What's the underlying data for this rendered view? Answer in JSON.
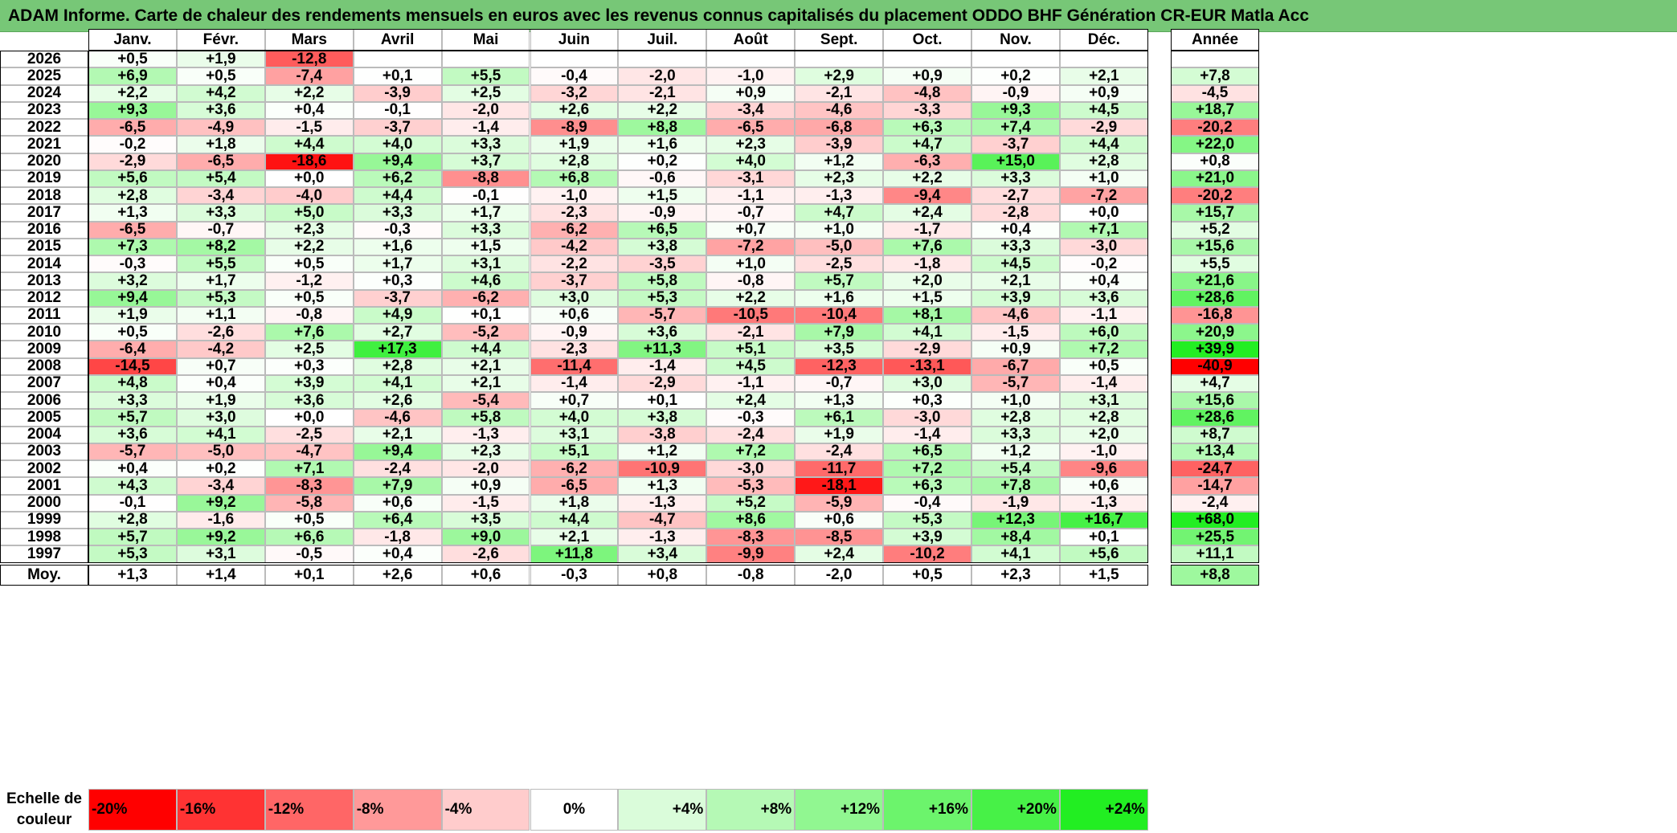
{
  "title": "ADAM Informe. Carte de chaleur des rendements mensuels en euros avec les revenus connus capitalisés du placement ODDO BHF Génération CR-EUR Matla Acc",
  "chart_data": {
    "type": "heatmap",
    "months": [
      "Janv.",
      "Févr.",
      "Mars",
      "Avril",
      "Mai",
      "Juin",
      "Juil.",
      "Août",
      "Sept.",
      "Oct.",
      "Nov.",
      "Déc."
    ],
    "year_header": "Année",
    "rows": [
      {
        "year": "2026",
        "values": [
          "+0,5",
          "+1,9",
          "-12,8",
          "",
          "",
          "",
          "",
          "",
          "",
          "",
          "",
          ""
        ],
        "annual": ""
      },
      {
        "year": "2025",
        "values": [
          "+6,9",
          "+0,5",
          "-7,4",
          "+0,1",
          "+5,5",
          "-0,4",
          "-2,0",
          "-1,0",
          "+2,9",
          "+0,9",
          "+0,2",
          "+2,1"
        ],
        "annual": "+7,8"
      },
      {
        "year": "2024",
        "values": [
          "+2,2",
          "+4,2",
          "+2,2",
          "-3,9",
          "+2,5",
          "-3,2",
          "-2,1",
          "+0,9",
          "-2,1",
          "-4,8",
          "-0,9",
          "+0,9"
        ],
        "annual": "-4,5"
      },
      {
        "year": "2023",
        "values": [
          "+9,3",
          "+3,6",
          "+0,4",
          "-0,1",
          "-2,0",
          "+2,6",
          "+2,2",
          "-3,4",
          "-4,6",
          "-3,3",
          "+9,3",
          "+4,5"
        ],
        "annual": "+18,7"
      },
      {
        "year": "2022",
        "values": [
          "-6,5",
          "-4,9",
          "-1,5",
          "-3,7",
          "-1,4",
          "-8,9",
          "+8,8",
          "-6,5",
          "-6,8",
          "+6,3",
          "+7,4",
          "-2,9"
        ],
        "annual": "-20,2"
      },
      {
        "year": "2021",
        "values": [
          "-0,2",
          "+1,8",
          "+4,4",
          "+4,0",
          "+3,3",
          "+1,9",
          "+1,6",
          "+2,3",
          "-3,9",
          "+4,7",
          "-3,7",
          "+4,4"
        ],
        "annual": "+22,0"
      },
      {
        "year": "2020",
        "values": [
          "-2,9",
          "-6,5",
          "-18,6",
          "+9,4",
          "+3,7",
          "+2,8",
          "+0,2",
          "+4,0",
          "+1,2",
          "-6,3",
          "+15,0",
          "+2,8"
        ],
        "annual": "+0,8"
      },
      {
        "year": "2019",
        "values": [
          "+5,6",
          "+5,4",
          "+0,0",
          "+6,2",
          "-8,8",
          "+6,8",
          "-0,6",
          "-3,1",
          "+2,3",
          "+2,2",
          "+3,3",
          "+1,0"
        ],
        "annual": "+21,0"
      },
      {
        "year": "2018",
        "values": [
          "+2,8",
          "-3,4",
          "-4,0",
          "+4,4",
          "-0,1",
          "-1,0",
          "+1,5",
          "-1,1",
          "-1,3",
          "-9,4",
          "-2,7",
          "-7,2"
        ],
        "annual": "-20,2"
      },
      {
        "year": "2017",
        "values": [
          "+1,3",
          "+3,3",
          "+5,0",
          "+3,3",
          "+1,7",
          "-2,3",
          "-0,9",
          "-0,7",
          "+4,7",
          "+2,4",
          "-2,8",
          "+0,0"
        ],
        "annual": "+15,7"
      },
      {
        "year": "2016",
        "values": [
          "-6,5",
          "-0,7",
          "+2,3",
          "-0,3",
          "+3,3",
          "-6,2",
          "+6,5",
          "+0,7",
          "+1,0",
          "-1,7",
          "+0,4",
          "+7,1"
        ],
        "annual": "+5,2"
      },
      {
        "year": "2015",
        "values": [
          "+7,3",
          "+8,2",
          "+2,2",
          "+1,6",
          "+1,5",
          "-4,2",
          "+3,8",
          "-7,2",
          "-5,0",
          "+7,6",
          "+3,3",
          "-3,0"
        ],
        "annual": "+15,6"
      },
      {
        "year": "2014",
        "values": [
          "-0,3",
          "+5,5",
          "+0,5",
          "+1,7",
          "+3,1",
          "-2,2",
          "-3,5",
          "+1,0",
          "-2,5",
          "-1,8",
          "+4,5",
          "-0,2"
        ],
        "annual": "+5,5"
      },
      {
        "year": "2013",
        "values": [
          "+3,2",
          "+1,7",
          "-1,2",
          "+0,3",
          "+4,6",
          "-3,7",
          "+5,8",
          "-0,8",
          "+5,7",
          "+2,0",
          "+2,1",
          "+0,4"
        ],
        "annual": "+21,6"
      },
      {
        "year": "2012",
        "values": [
          "+9,4",
          "+5,3",
          "+0,5",
          "-3,7",
          "-6,2",
          "+3,0",
          "+5,3",
          "+2,2",
          "+1,6",
          "+1,5",
          "+3,9",
          "+3,6"
        ],
        "annual": "+28,6"
      },
      {
        "year": "2011",
        "values": [
          "+1,9",
          "+1,1",
          "-0,8",
          "+4,9",
          "+0,1",
          "+0,6",
          "-5,7",
          "-10,5",
          "-10,4",
          "+8,1",
          "-4,6",
          "-1,1"
        ],
        "annual": "-16,8"
      },
      {
        "year": "2010",
        "values": [
          "+0,5",
          "-2,6",
          "+7,6",
          "+2,7",
          "-5,2",
          "-0,9",
          "+3,6",
          "-2,1",
          "+7,9",
          "+4,1",
          "-1,5",
          "+6,0"
        ],
        "annual": "+20,9"
      },
      {
        "year": "2009",
        "values": [
          "-6,4",
          "-4,2",
          "+2,5",
          "+17,3",
          "+4,4",
          "-2,3",
          "+11,3",
          "+5,1",
          "+3,5",
          "-2,9",
          "+0,9",
          "+7,2"
        ],
        "annual": "+39,9"
      },
      {
        "year": "2008",
        "values": [
          "-14,5",
          "+0,7",
          "+0,3",
          "+2,8",
          "+2,1",
          "-11,4",
          "-1,4",
          "+4,5",
          "-12,3",
          "-13,1",
          "-6,7",
          "+0,5"
        ],
        "annual": "-40,9"
      },
      {
        "year": "2007",
        "values": [
          "+4,8",
          "+0,4",
          "+3,9",
          "+4,1",
          "+2,1",
          "-1,4",
          "-2,9",
          "-1,1",
          "-0,7",
          "+3,0",
          "-5,7",
          "-1,4"
        ],
        "annual": "+4,7"
      },
      {
        "year": "2006",
        "values": [
          "+3,3",
          "+1,9",
          "+3,6",
          "+2,6",
          "-5,4",
          "+0,7",
          "+0,1",
          "+2,4",
          "+1,3",
          "+0,3",
          "+1,0",
          "+3,1"
        ],
        "annual": "+15,6"
      },
      {
        "year": "2005",
        "values": [
          "+5,7",
          "+3,0",
          "+0,0",
          "-4,6",
          "+5,8",
          "+4,0",
          "+3,8",
          "-0,3",
          "+6,1",
          "-3,0",
          "+2,8",
          "+2,8"
        ],
        "annual": "+28,6"
      },
      {
        "year": "2004",
        "values": [
          "+3,6",
          "+4,1",
          "-2,5",
          "+2,1",
          "-1,3",
          "+3,1",
          "-3,8",
          "-2,4",
          "+1,9",
          "-1,4",
          "+3,3",
          "+2,0"
        ],
        "annual": "+8,7"
      },
      {
        "year": "2003",
        "values": [
          "-5,7",
          "-5,0",
          "-4,7",
          "+9,4",
          "+2,3",
          "+5,1",
          "+1,2",
          "+7,2",
          "-2,4",
          "+6,5",
          "+1,2",
          "-1,0"
        ],
        "annual": "+13,4"
      },
      {
        "year": "2002",
        "values": [
          "+0,4",
          "+0,2",
          "+7,1",
          "-2,4",
          "-2,0",
          "-6,2",
          "-10,9",
          "-3,0",
          "-11,7",
          "+7,2",
          "+5,4",
          "-9,6"
        ],
        "annual": "-24,7"
      },
      {
        "year": "2001",
        "values": [
          "+4,3",
          "-3,4",
          "-8,3",
          "+7,9",
          "+0,9",
          "-6,5",
          "+1,3",
          "-5,3",
          "-18,1",
          "+6,3",
          "+7,8",
          "+0,6"
        ],
        "annual": "-14,7"
      },
      {
        "year": "2000",
        "values": [
          "-0,1",
          "+9,2",
          "-5,8",
          "+0,6",
          "-1,5",
          "+1,8",
          "-1,3",
          "+5,2",
          "-5,9",
          "-0,4",
          "-1,9",
          "-1,3"
        ],
        "annual": "-2,4"
      },
      {
        "year": "1999",
        "values": [
          "+2,8",
          "-1,6",
          "+0,5",
          "+6,4",
          "+3,5",
          "+4,4",
          "-4,7",
          "+8,6",
          "+0,6",
          "+5,3",
          "+12,3",
          "+16,7"
        ],
        "annual": "+68,0"
      },
      {
        "year": "1998",
        "values": [
          "+5,7",
          "+9,2",
          "+6,6",
          "-1,8",
          "+9,0",
          "+2,1",
          "-1,3",
          "-8,3",
          "-8,5",
          "+3,9",
          "+8,4",
          "+0,1"
        ],
        "annual": "+25,5"
      },
      {
        "year": "1997",
        "values": [
          "+5,3",
          "+3,1",
          "-0,5",
          "+0,4",
          "-2,6",
          "+11,8",
          "+3,4",
          "-9,9",
          "+2,4",
          "-10,2",
          "+4,1",
          "+5,6"
        ],
        "annual": "+11,1"
      }
    ],
    "average": {
      "label": "Moy.",
      "values": [
        "+1,3",
        "+1,4",
        "+0,1",
        "+2,6",
        "+0,6",
        "-0,3",
        "+0,8",
        "-0,8",
        "-2,0",
        "+0,5",
        "+2,3",
        "+1,5"
      ],
      "annual": "+8,8"
    },
    "scale": {
      "label": "Echelle de couleur",
      "stops": [
        {
          "label": "-20%",
          "value": -20
        },
        {
          "label": "-16%",
          "value": -16
        },
        {
          "label": "-12%",
          "value": -12
        },
        {
          "label": "-8%",
          "value": -8
        },
        {
          "label": "-4%",
          "value": -4
        },
        {
          "label": "0%",
          "value": 0
        },
        {
          "label": "+4%",
          "value": 4
        },
        {
          "label": "+8%",
          "value": 8
        },
        {
          "label": "+12%",
          "value": 12
        },
        {
          "label": "+16%",
          "value": 16
        },
        {
          "label": "+20%",
          "value": 20
        },
        {
          "label": "+24%",
          "value": 24
        }
      ]
    },
    "colors": {
      "negative_max": "#ff0000",
      "neutral": "#ffffff",
      "positive_max": "#22ee22",
      "title_bar": "#77c777"
    }
  }
}
